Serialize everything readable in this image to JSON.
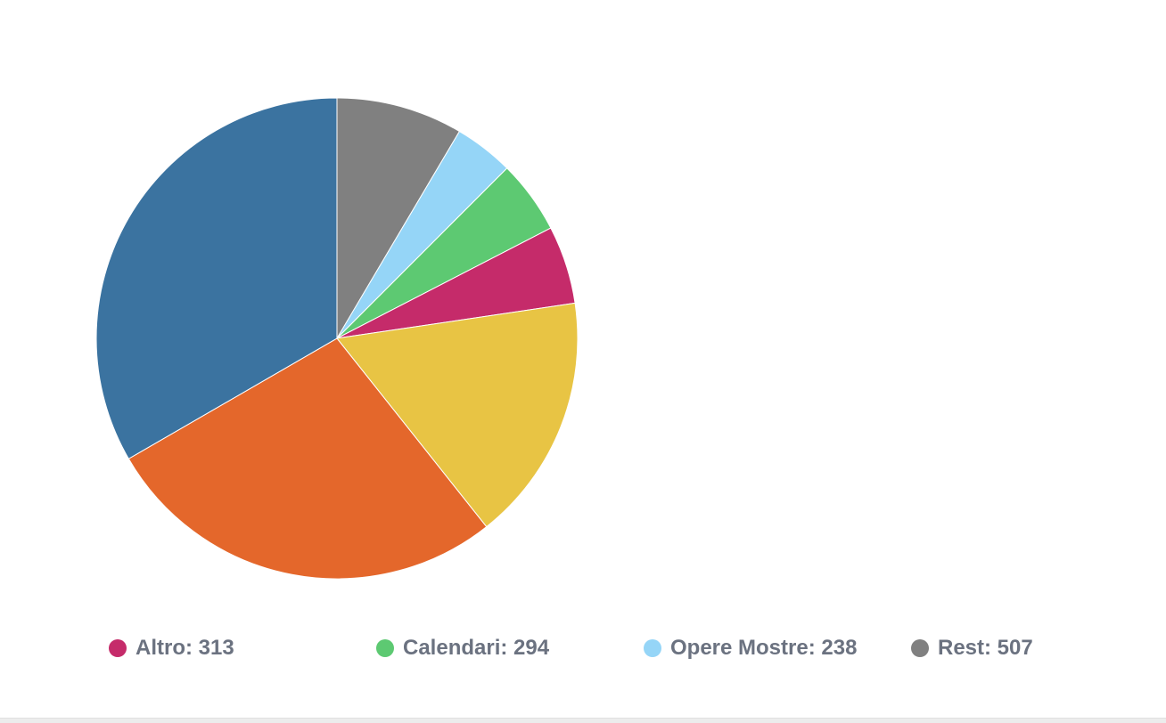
{
  "chart_data": {
    "type": "pie",
    "slices": [
      {
        "name": "",
        "value": 507,
        "color": "#808080"
      },
      {
        "name": "",
        "value": 238,
        "color": "#95d5f7"
      },
      {
        "name": "",
        "value": 294,
        "color": "#5dc972"
      },
      {
        "name": "",
        "value": 313,
        "color": "#c52b6a"
      },
      {
        "name": "",
        "value": 995,
        "color": "#e8c444"
      },
      {
        "name": "",
        "value": 1630,
        "color": "#e4672b"
      },
      {
        "name": "",
        "value": 1990,
        "color": "#3b73a0"
      }
    ],
    "legend_placement": "bottom",
    "legend": [
      {
        "label": "Altro: 313",
        "color": "#c52b6a"
      },
      {
        "label": "Calendari: 294",
        "color": "#5dc972"
      },
      {
        "label": "Opere Mostre: 238",
        "color": "#95d5f7"
      },
      {
        "label": "Rest: 507",
        "color": "#808080"
      }
    ]
  }
}
